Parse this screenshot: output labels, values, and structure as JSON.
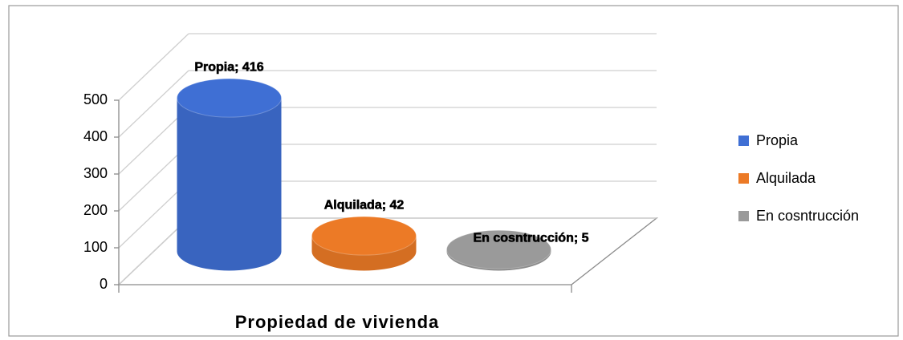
{
  "chart_data": {
    "type": "bar3d",
    "x_label": "Propiedad de vivienda",
    "categories": [
      null
    ],
    "series": [
      {
        "name": "Propia",
        "color": "#3f6fd4",
        "values": [
          416
        ],
        "value_labels": [
          "Propia; 416"
        ]
      },
      {
        "name": "Alquilada",
        "color": "#ec7a26",
        "values": [
          42
        ],
        "value_labels": [
          "Alquilada; 42"
        ]
      },
      {
        "name": "En cosntrucción",
        "color": "#9a9a9a",
        "values": [
          5
        ],
        "value_labels": [
          "En cosntrucción; 5"
        ]
      }
    ],
    "ylim": [
      0,
      500
    ],
    "yticks": [
      0,
      100,
      200,
      300,
      400,
      500
    ],
    "grid": true,
    "legend": "right"
  }
}
